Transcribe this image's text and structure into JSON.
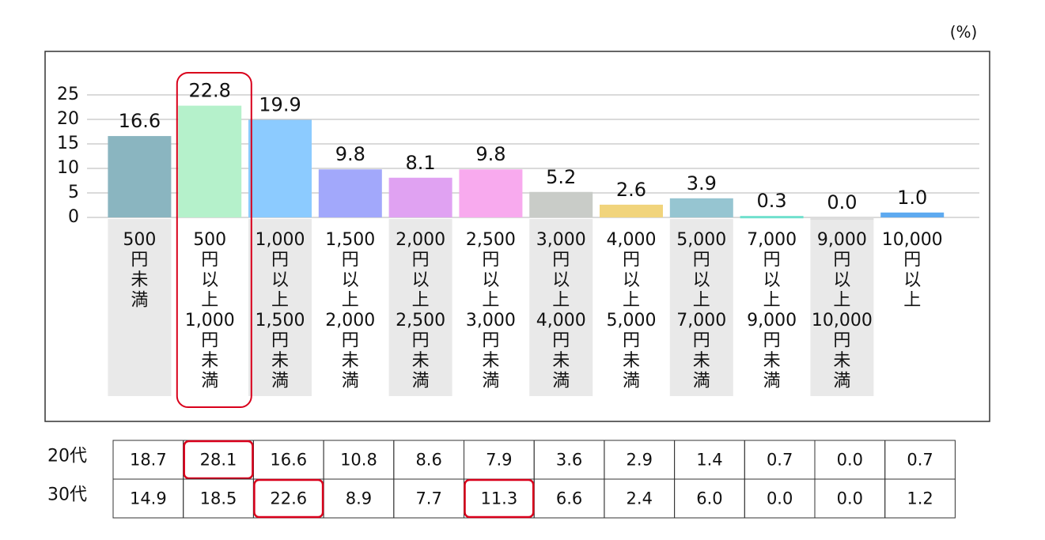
{
  "chart_data": {
    "type": "bar",
    "unit": "(%)",
    "categories": [
      [
        "500",
        "円",
        "未",
        "満"
      ],
      [
        "500",
        "円",
        "以",
        "上",
        "1,000",
        "円",
        "未",
        "満"
      ],
      [
        "1,000",
        "円",
        "以",
        "上",
        "1,500",
        "円",
        "未",
        "満"
      ],
      [
        "1,500",
        "円",
        "以",
        "上",
        "2,000",
        "円",
        "未",
        "満"
      ],
      [
        "2,000",
        "円",
        "以",
        "上",
        "2,500",
        "円",
        "未",
        "満"
      ],
      [
        "2,500",
        "円",
        "以",
        "上",
        "3,000",
        "円",
        "未",
        "満"
      ],
      [
        "3,000",
        "円",
        "以",
        "上",
        "4,000",
        "円",
        "未",
        "満"
      ],
      [
        "4,000",
        "円",
        "以",
        "上",
        "5,000",
        "円",
        "未",
        "満"
      ],
      [
        "5,000",
        "円",
        "以",
        "上",
        "7,000",
        "円",
        "未",
        "満"
      ],
      [
        "7,000",
        "円",
        "以",
        "上",
        "9,000",
        "円",
        "未",
        "満"
      ],
      [
        "9,000",
        "円",
        "以",
        "上",
        "10,000",
        "円",
        "未",
        "満"
      ],
      [
        "10,000",
        "円",
        "以",
        "上"
      ]
    ],
    "values": [
      16.6,
      22.8,
      19.9,
      9.8,
      8.1,
      9.8,
      5.2,
      2.6,
      3.9,
      0.3,
      0.0,
      1.0
    ],
    "value_labels": [
      "16.6",
      "22.8",
      "19.9",
      "9.8",
      "8.1",
      "9.8",
      "5.2",
      "2.6",
      "3.9",
      "0.3",
      "0.0",
      "1.0"
    ],
    "colors": [
      "#8ab5c0",
      "#b5f1cb",
      "#8ccbff",
      "#a2a8fb",
      "#e0a2f2",
      "#f8aaee",
      "#c9ccc8",
      "#f1d47c",
      "#96c5d1",
      "#6fe0cd",
      "#dddddd",
      "#5eaaf0"
    ],
    "ylim": [
      0,
      25
    ],
    "yticks": [
      0,
      5,
      10,
      15,
      20,
      25
    ],
    "grid": true,
    "highlight": [
      1
    ]
  },
  "table": {
    "rows": [
      {
        "label": "20代",
        "values": [
          "18.7",
          "28.1",
          "16.6",
          "10.8",
          "8.6",
          "7.9",
          "3.6",
          "2.9",
          "1.4",
          "0.7",
          "0.0",
          "0.7"
        ],
        "highlight": [
          1
        ]
      },
      {
        "label": "30代",
        "values": [
          "14.9",
          "18.5",
          "22.6",
          "8.9",
          "7.7",
          "11.3",
          "6.6",
          "2.4",
          "6.0",
          "0.0",
          "0.0",
          "1.2"
        ],
        "highlight": [
          2,
          5
        ]
      }
    ]
  }
}
